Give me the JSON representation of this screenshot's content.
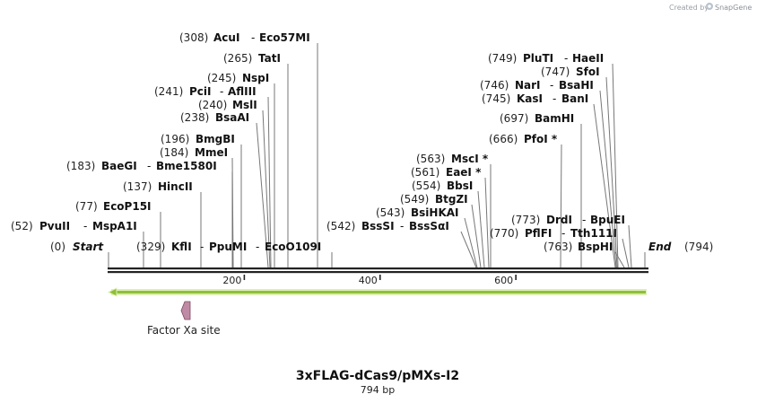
{
  "credit": {
    "prefix": "Created by",
    "brand": "SnapGene"
  },
  "map": {
    "title": "3xFLAG-dCas9/pMXs-I2",
    "length_label": "794 bp",
    "total_bp": 794,
    "ticks": [
      {
        "pos": 200,
        "label": "200"
      },
      {
        "pos": 400,
        "label": "400"
      },
      {
        "pos": 600,
        "label": "600"
      }
    ]
  },
  "ends": [
    {
      "key": "start",
      "pos": 0,
      "pos_label": "(0)",
      "name": "Start"
    },
    {
      "key": "end",
      "pos": 794,
      "pos_label": "(794)",
      "name": "End"
    }
  ],
  "labels": [
    {
      "key": "acui",
      "pos": 308,
      "pos_label": "(308)",
      "names": [
        "AcuI",
        "Eco57MI"
      ]
    },
    {
      "key": "tati",
      "pos": 265,
      "pos_label": "(265)",
      "names": [
        "TatI"
      ]
    },
    {
      "key": "nspi",
      "pos": 245,
      "pos_label": "(245)",
      "names": [
        "NspI"
      ]
    },
    {
      "key": "pcii",
      "pos": 241,
      "pos_label": "(241)",
      "names": [
        "PciI",
        "AflIII"
      ]
    },
    {
      "key": "msli",
      "pos": 240,
      "pos_label": "(240)",
      "names": [
        "MslI"
      ]
    },
    {
      "key": "bsaai",
      "pos": 238,
      "pos_label": "(238)",
      "names": [
        "BsaAI"
      ]
    },
    {
      "key": "bmgbi",
      "pos": 196,
      "pos_label": "(196)",
      "names": [
        "BmgBI"
      ]
    },
    {
      "key": "mmei",
      "pos": 184,
      "pos_label": "(184)",
      "names": [
        "MmeI"
      ]
    },
    {
      "key": "baegi",
      "pos": 183,
      "pos_label": "(183)",
      "names": [
        "BaeGI",
        "Bme1580I"
      ]
    },
    {
      "key": "hincii",
      "pos": 137,
      "pos_label": "(137)",
      "names": [
        "HincII"
      ]
    },
    {
      "key": "ecop15i",
      "pos": 77,
      "pos_label": "(77)",
      "names": [
        "EcoP15I"
      ]
    },
    {
      "key": "pvuii",
      "pos": 52,
      "pos_label": "(52)",
      "names": [
        "PvuII",
        "MspA1I"
      ]
    },
    {
      "key": "kfli",
      "pos": 329,
      "pos_label": "(329)",
      "names": [
        "KflI",
        "PpuMI",
        "EcoO109I"
      ]
    },
    {
      "key": "mscI",
      "pos": 563,
      "pos_label": "(563)",
      "names": [
        "MscI *"
      ]
    },
    {
      "key": "eaei",
      "pos": 561,
      "pos_label": "(561)",
      "names": [
        "EaeI *"
      ]
    },
    {
      "key": "bbsi",
      "pos": 554,
      "pos_label": "(554)",
      "names": [
        "BbsI"
      ]
    },
    {
      "key": "btgzi",
      "pos": 549,
      "pos_label": "(549)",
      "names": [
        "BtgZI"
      ]
    },
    {
      "key": "bsihkai",
      "pos": 543,
      "pos_label": "(543)",
      "names": [
        "BsiHKAI"
      ]
    },
    {
      "key": "bsssi",
      "pos": 542,
      "pos_label": "(542)",
      "names": [
        "BssSI",
        "BssSαI"
      ]
    },
    {
      "key": "plutI",
      "pos": 749,
      "pos_label": "(749)",
      "names": [
        "PluTI",
        "HaeII"
      ]
    },
    {
      "key": "sfoi",
      "pos": 747,
      "pos_label": "(747)",
      "names": [
        "SfoI"
      ]
    },
    {
      "key": "nari",
      "pos": 746,
      "pos_label": "(746)",
      "names": [
        "NarI",
        "BsaHI"
      ]
    },
    {
      "key": "kasi",
      "pos": 745,
      "pos_label": "(745)",
      "names": [
        "KasI",
        "BanI"
      ]
    },
    {
      "key": "bamhi",
      "pos": 697,
      "pos_label": "(697)",
      "names": [
        "BamHI"
      ]
    },
    {
      "key": "pfoi",
      "pos": 666,
      "pos_label": "(666)",
      "names": [
        "PfoI *"
      ]
    },
    {
      "key": "drdi",
      "pos": 773,
      "pos_label": "(773)",
      "names": [
        "DrdI",
        "BpuEI"
      ]
    },
    {
      "key": "pflfi",
      "pos": 770,
      "pos_label": "(770)",
      "names": [
        "PflFI",
        "Tth111I"
      ]
    },
    {
      "key": "bsphi",
      "pos": 763,
      "pos_label": "(763)",
      "names": [
        "BspHI"
      ]
    }
  ],
  "features": [
    {
      "key": "orf",
      "name": "",
      "start": 1,
      "end": 794,
      "direction": "reverse",
      "color": "#8ebf3a"
    },
    {
      "key": "factor-xa-site",
      "name": "Factor Xa site",
      "start": 112,
      "end": 123,
      "direction": "reverse",
      "color": "#c08aa4"
    }
  ],
  "colors": {
    "line": "#777777",
    "backbone": "#222222",
    "arrow_fill": "#8ebf3a",
    "arrow_glow": "#dcefb4",
    "site_fill": "#c08aa4",
    "site_stroke": "#7a4a62"
  }
}
